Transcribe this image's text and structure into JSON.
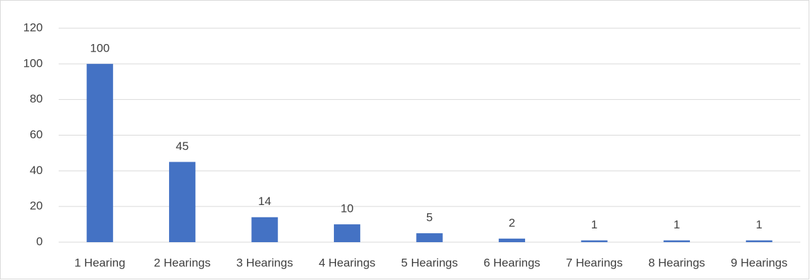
{
  "chart_data": {
    "type": "bar",
    "categories": [
      "1 Hearing",
      "2 Hearings",
      "3 Hearings",
      "4 Hearings",
      "5 Hearings",
      "6 Hearings",
      "7 Hearings",
      "8 Hearings",
      "9 Hearings"
    ],
    "values": [
      100,
      45,
      14,
      10,
      5,
      2,
      1,
      1,
      1
    ],
    "color": "#4472c4",
    "ylim": [
      0,
      120
    ],
    "yticks": [
      0,
      20,
      40,
      60,
      80,
      100,
      120
    ],
    "grid": true,
    "data_labels": true
  }
}
